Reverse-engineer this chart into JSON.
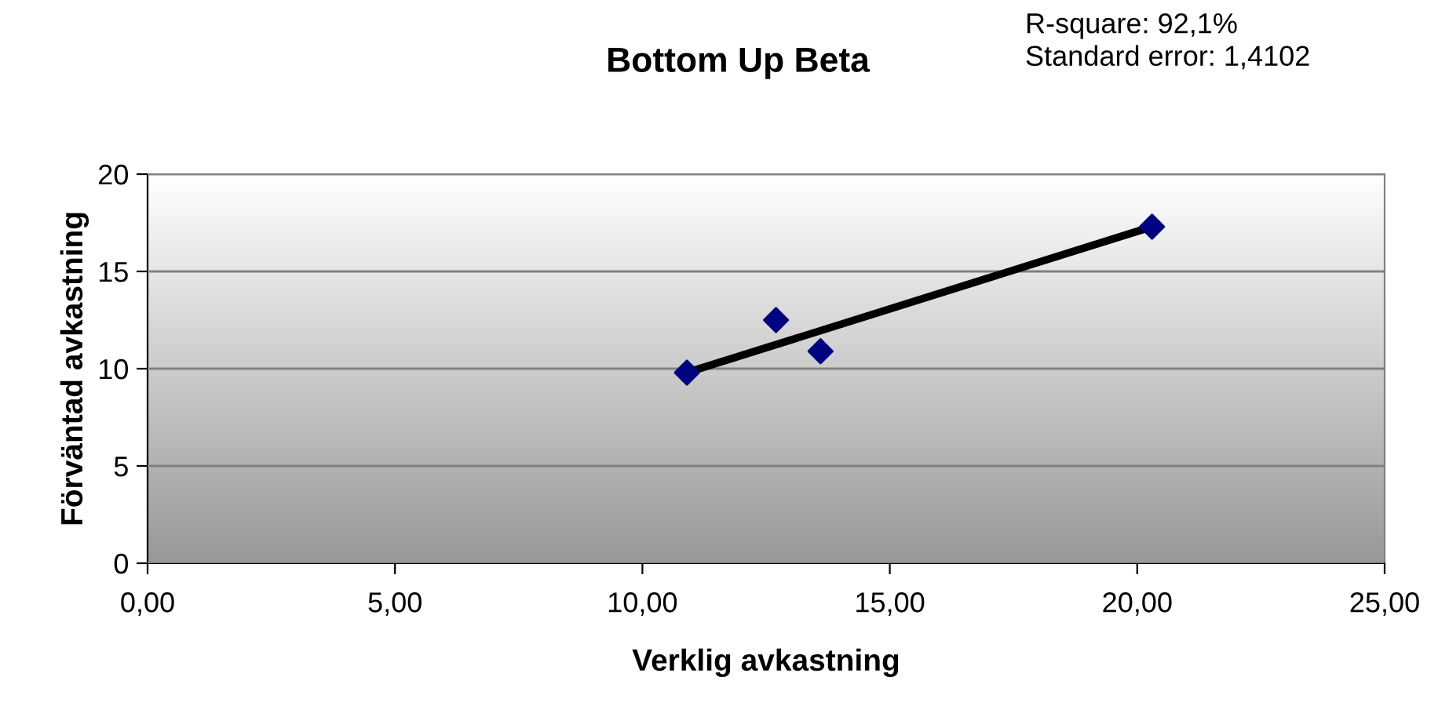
{
  "chart_data": {
    "type": "scatter",
    "title": "Bottom Up Beta",
    "xlabel": "Verklig avkastning",
    "ylabel": "Förväntad avkastning",
    "annotations": [
      "R-square: 92,1%\nStandard error: 1,4102"
    ],
    "series": [
      {
        "color": "#000080",
        "marker": "diamond",
        "x": [
          10.9,
          12.7,
          13.6,
          20.3
        ],
        "values": [
          9.8,
          12.5,
          10.9,
          17.3
        ]
      },
      {
        "type": "line",
        "color": "#000000",
        "marker": "none",
        "x": [
          10.9,
          20.3
        ],
        "values": [
          9.8,
          17.3
        ]
      }
    ],
    "xlim": [
      0,
      25
    ],
    "xticks": [
      {
        "value": 0,
        "label": "0,00"
      },
      {
        "value": 5,
        "label": "5,00"
      },
      {
        "value": 10,
        "label": "10,00"
      },
      {
        "value": 15,
        "label": "15,00"
      },
      {
        "value": 20,
        "label": "20,00"
      },
      {
        "value": 25,
        "label": "25,00"
      }
    ],
    "ylim": [
      0,
      20
    ],
    "yticks": [
      0,
      5,
      10,
      15,
      20
    ],
    "grid": "y"
  }
}
